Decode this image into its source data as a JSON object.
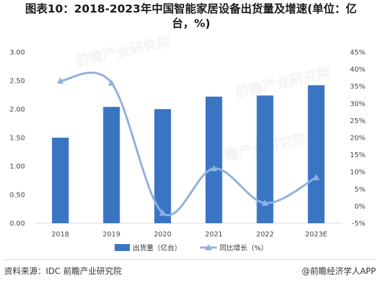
{
  "title": {
    "line1": "图表10：2018-2023年中国智能家居设备出货量及增速(单位：亿",
    "line2": "台，%)"
  },
  "chart_data": {
    "type": "bar",
    "categories": [
      "2018",
      "2019",
      "2020",
      "2021",
      "2022",
      "2023E"
    ],
    "series": [
      {
        "name": "出货量（亿台）",
        "kind": "bar",
        "axis": "left",
        "values": [
          1.5,
          2.04,
          2.0,
          2.22,
          2.24,
          2.42
        ],
        "color": "#3a75c4"
      },
      {
        "name": "同比增长（%）",
        "kind": "line",
        "axis": "right",
        "values": [
          36.6,
          36.0,
          -2.0,
          11.0,
          0.9,
          8.4
        ],
        "color": "#8fb0e0"
      }
    ],
    "left_axis": {
      "ylim": [
        0,
        3.0
      ],
      "ticks": [
        "0.00",
        "0.50",
        "1.00",
        "1.50",
        "2.00",
        "2.50",
        "3.00"
      ]
    },
    "right_axis": {
      "ylim": [
        -5,
        45
      ],
      "ticks": [
        "-5%",
        "0%",
        "5%",
        "10%",
        "15%",
        "20%",
        "25%",
        "30%",
        "35%",
        "40%",
        "45%"
      ]
    },
    "grid": false,
    "legend": "bottom-center"
  },
  "watermark": "前瞻产业研究院",
  "footer": {
    "source": "资料来源：IDC 前瞻产业研究院",
    "brand": "@前瞻经济学人APP"
  },
  "colors": {
    "bar": "#3a75c4",
    "line": "#8fb0e0",
    "axis": "#d9d9d9"
  }
}
